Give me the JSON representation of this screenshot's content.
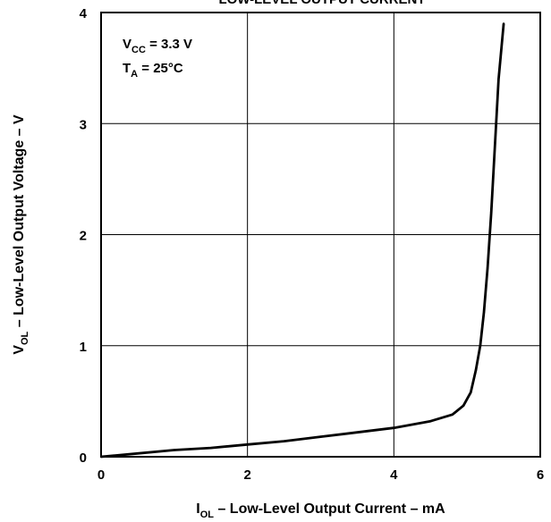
{
  "chart_data": {
    "type": "line",
    "title": "LOW-LEVEL OUTPUT CURRENT",
    "xlabel": {
      "main": "I",
      "sub": "OL",
      "rest": " – Low-Level Output Current – mA"
    },
    "ylabel": {
      "main": "V",
      "sub": "OL",
      "rest": " – Low-Level Output Voltage – V"
    },
    "xlim": [
      0,
      6
    ],
    "ylim": [
      0,
      4
    ],
    "x_ticks": [
      "0",
      "2",
      "4",
      "6"
    ],
    "y_ticks": [
      "0",
      "1",
      "2",
      "3",
      "4"
    ],
    "grid": true,
    "annotations": [
      {
        "main": "V",
        "sub": "CC",
        "rest": " = 3.3 V"
      },
      {
        "main": "T",
        "sub": "A",
        "rest": " = 25°C"
      }
    ],
    "series": [
      {
        "x": [
          0,
          0.5,
          1.0,
          1.5,
          2.0,
          2.5,
          3.0,
          3.5,
          4.0,
          4.5,
          4.8,
          4.95,
          5.05,
          5.12,
          5.18,
          5.23,
          5.28,
          5.33,
          5.38,
          5.43,
          5.5
        ],
        "y": [
          0.0,
          0.03,
          0.06,
          0.08,
          0.11,
          0.14,
          0.18,
          0.22,
          0.26,
          0.32,
          0.38,
          0.46,
          0.58,
          0.78,
          1.0,
          1.3,
          1.7,
          2.2,
          2.8,
          3.4,
          3.9
        ]
      }
    ]
  }
}
